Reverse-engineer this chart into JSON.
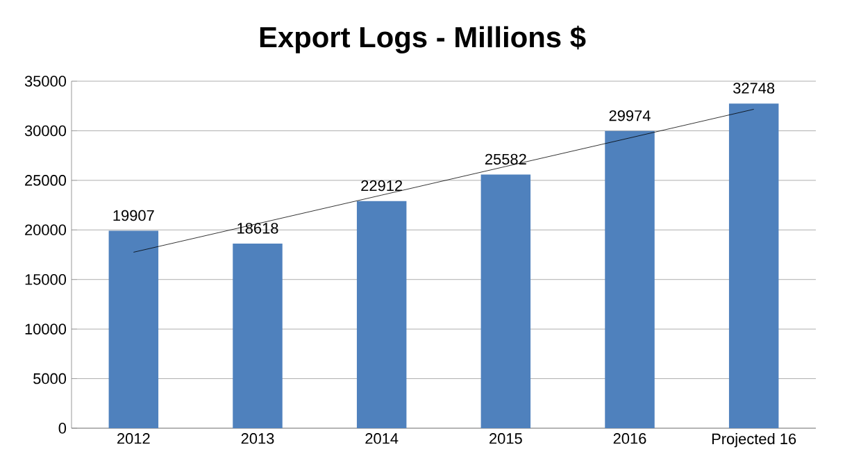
{
  "chart_data": {
    "type": "bar",
    "title": "Export Logs - Millions $",
    "categories": [
      "2012",
      "2013",
      "2014",
      "2015",
      "2016",
      "Projected 16"
    ],
    "series": [
      {
        "color": "#4f81bd",
        "values": [
          19907,
          18618,
          22912,
          25582,
          29974,
          32748
        ],
        "value_labels": [
          "19907",
          "18618",
          "22912",
          "25582",
          "29974",
          "32748"
        ]
      },
      {
        "type": "line",
        "color": "#000000",
        "marker": "none",
        "values": [
          17750,
          20630,
          23510,
          26400,
          29280,
          32170
        ]
      }
    ],
    "ylim": [
      0,
      35000
    ],
    "yticks": [
      0,
      5000,
      10000,
      15000,
      20000,
      25000,
      30000,
      35000
    ],
    "grid": "y"
  }
}
